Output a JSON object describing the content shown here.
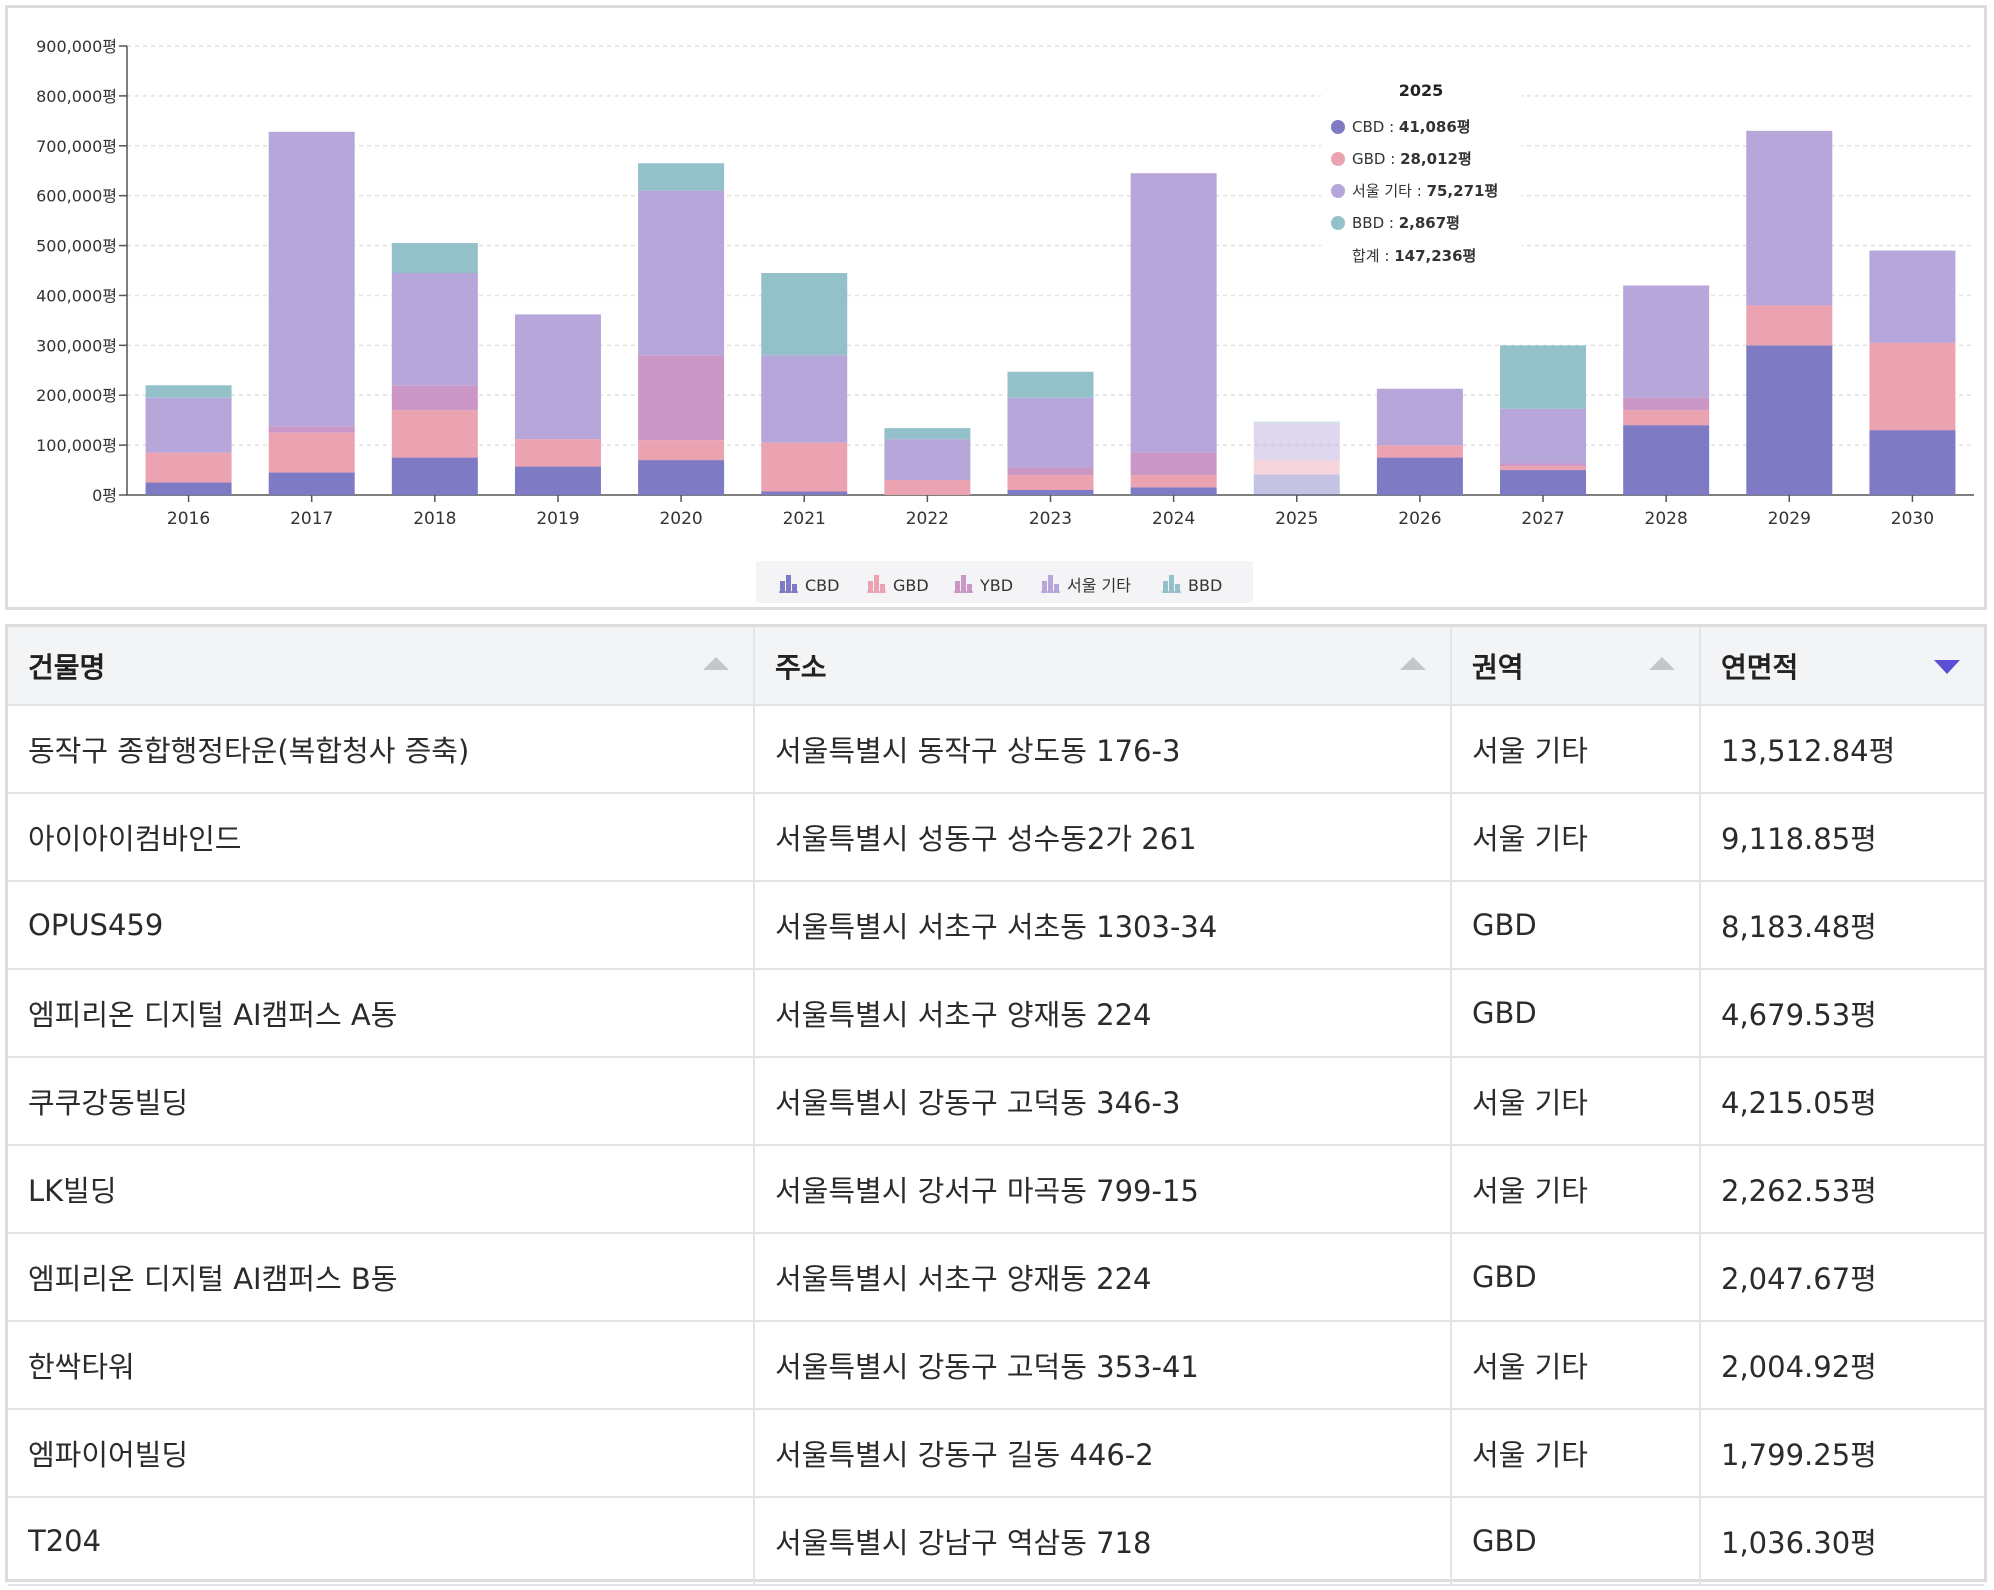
{
  "chart_data": {
    "type": "bar",
    "stacked": true,
    "categories": [
      "2016",
      "2017",
      "2018",
      "2019",
      "2020",
      "2021",
      "2022",
      "2023",
      "2024",
      "2025",
      "2026",
      "2027",
      "2028",
      "2029",
      "2030"
    ],
    "series": [
      {
        "name": "CBD",
        "color": "#7e7ac4",
        "values": [
          25000,
          45000,
          75000,
          57000,
          70000,
          7000,
          0,
          10000,
          15000,
          41086,
          75000,
          50000,
          140000,
          300000,
          130000
        ]
      },
      {
        "name": "GBD",
        "color": "#eba3b1",
        "values": [
          60000,
          80000,
          95000,
          55000,
          40000,
          98000,
          30000,
          30000,
          25000,
          28012,
          25000,
          8000,
          30000,
          80000,
          175000
        ]
      },
      {
        "name": "YBD",
        "color": "#cb97c7",
        "values": [
          0,
          13000,
          50000,
          0,
          170000,
          0,
          0,
          15000,
          45000,
          0,
          0,
          5000,
          25000,
          0,
          0
        ]
      },
      {
        "name": "서울 기타",
        "color": "#b6a6da",
        "values": [
          110000,
          590000,
          225000,
          250000,
          330000,
          175000,
          82000,
          140000,
          560000,
          75271,
          113000,
          110000,
          225000,
          350000,
          185000
        ]
      },
      {
        "name": "BBD",
        "color": "#94c1c9",
        "values": [
          25000,
          0,
          60000,
          0,
          55000,
          165000,
          22000,
          52000,
          0,
          2867,
          0,
          127000,
          0,
          0,
          0
        ]
      }
    ],
    "y_ticks": [
      "0평",
      "100,000평",
      "200,000평",
      "300,000평",
      "400,000평",
      "500,000평",
      "600,000평",
      "700,000평",
      "800,000평",
      "900,000평"
    ],
    "ylim": [
      0,
      900000
    ],
    "grid": true,
    "legend": "bottom-center",
    "highlighted_category": "2025",
    "tooltip": {
      "title": "2025",
      "rows": [
        {
          "label": "CBD : ",
          "value": "41,086평",
          "color": "#7e7ac4"
        },
        {
          "label": "GBD : ",
          "value": "28,012평",
          "color": "#eba3b1"
        },
        {
          "label": "서울 기타 : ",
          "value": "75,271평",
          "color": "#b6a6da"
        },
        {
          "label": "BBD : ",
          "value": "2,867평",
          "color": "#94c1c9"
        }
      ],
      "total_label": "합계 : ",
      "total_value": "147,236평"
    }
  },
  "table": {
    "headers": [
      {
        "label": "건물명",
        "sort": "up"
      },
      {
        "label": "주소",
        "sort": "up"
      },
      {
        "label": "권역",
        "sort": "up"
      },
      {
        "label": "연면적",
        "sort": "down"
      }
    ],
    "rows": [
      [
        "동작구 종합행정타운(복합청사 증축)",
        "서울특별시 동작구 상도동 176-3",
        "서울 기타",
        "13,512.84평"
      ],
      [
        "아이아이컴바인드",
        "서울특별시 성동구 성수동2가 261",
        "서울 기타",
        "9,118.85평"
      ],
      [
        "OPUS459",
        "서울특별시 서초구 서초동 1303-34",
        "GBD",
        "8,183.48평"
      ],
      [
        "엠피리온 디지털 AI캠퍼스 A동",
        "서울특별시 서초구 양재동 224",
        "GBD",
        "4,679.53평"
      ],
      [
        "쿠쿠강동빌딩",
        "서울특별시 강동구 고덕동 346-3",
        "서울 기타",
        "4,215.05평"
      ],
      [
        "LK빌딩",
        "서울특별시 강서구 마곡동 799-15",
        "서울 기타",
        "2,262.53평"
      ],
      [
        "엠피리온 디지털 AI캠퍼스 B동",
        "서울특별시 서초구 양재동 224",
        "GBD",
        "2,047.67평"
      ],
      [
        "한싹타워",
        "서울특별시 강동구 고덕동 353-41",
        "서울 기타",
        "2,004.92평"
      ],
      [
        "엠파이어빌딩",
        "서울특별시 강동구 길동 446-2",
        "서울 기타",
        "1,799.25평"
      ],
      [
        "T204",
        "서울특별시 강남구 역삼동 718",
        "GBD",
        "1,036.30평"
      ]
    ]
  }
}
